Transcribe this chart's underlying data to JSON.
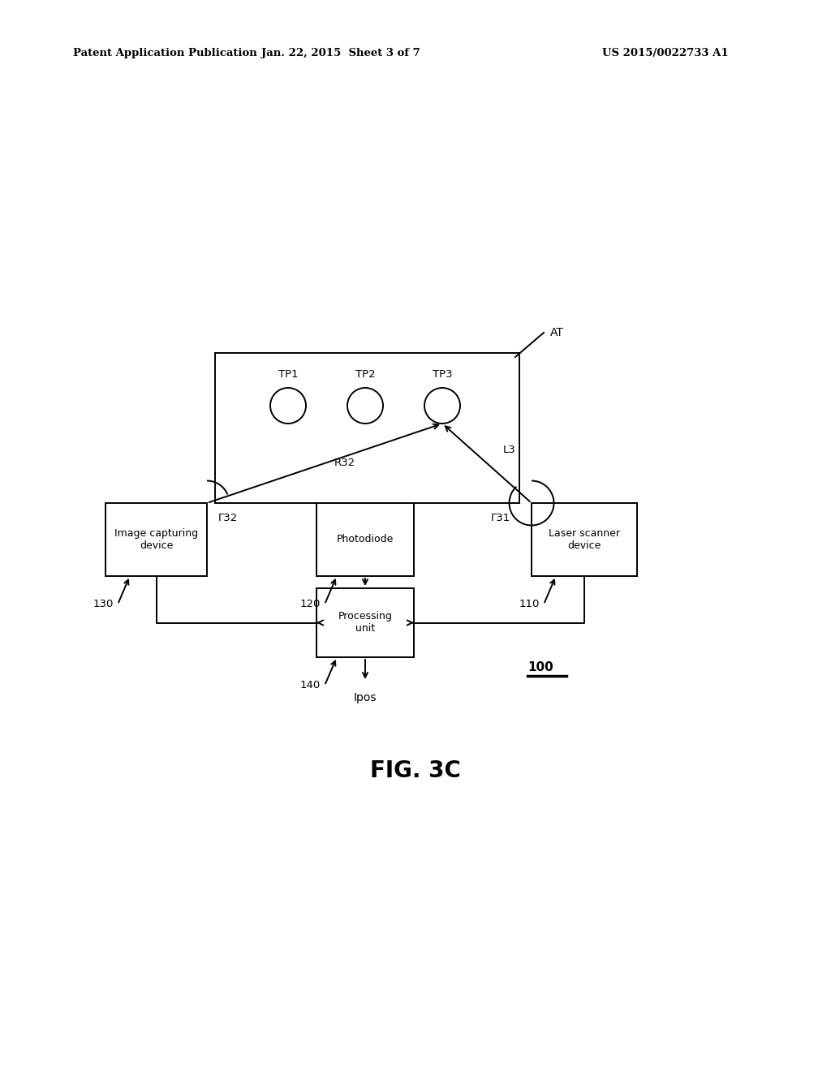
{
  "bg_color": "#ffffff",
  "text_color": "#000000",
  "header_left": "Patent Application Publication",
  "header_mid": "Jan. 22, 2015  Sheet 3 of 7",
  "header_right": "US 2015/0022733 A1",
  "fig_label": "FIG. 3C",
  "diagram_ref": "100",
  "touch_points": [
    "TP1",
    "TP2",
    "TP3"
  ],
  "AT_label": "AT",
  "L3_label": "L3",
  "R32_label": "R32",
  "theta31_label": "Γ31",
  "theta32_label": "Γ32",
  "Ipos_label": "Ipos",
  "lw": 1.4
}
